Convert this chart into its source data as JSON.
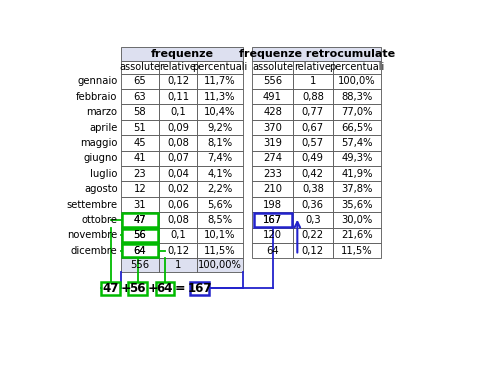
{
  "months": [
    "gennaio",
    "febbraio",
    "marzo",
    "aprile",
    "maggio",
    "giugno",
    "luglio",
    "agosto",
    "settembre",
    "ottobre",
    "novembre",
    "dicembre"
  ],
  "freq_abs": [
    "65",
    "63",
    "58",
    "51",
    "45",
    "41",
    "23",
    "12",
    "31",
    "47",
    "56",
    "64"
  ],
  "freq_rel": [
    "0,12",
    "0,11",
    "0,1",
    "0,09",
    "0,08",
    "0,07",
    "0,04",
    "0,02",
    "0,06",
    "0,08",
    "0,1",
    "0,12"
  ],
  "freq_pct": [
    "11,7%",
    "11,3%",
    "10,4%",
    "9,2%",
    "8,1%",
    "7,4%",
    "4,1%",
    "2,2%",
    "5,6%",
    "8,5%",
    "10,1%",
    "11,5%"
  ],
  "retro_abs": [
    "556",
    "491",
    "428",
    "370",
    "319",
    "274",
    "233",
    "210",
    "198",
    "167",
    "120",
    "64"
  ],
  "retro_rel": [
    "1",
    "0,88",
    "0,77",
    "0,67",
    "0,57",
    "0,49",
    "0,42",
    "0,38",
    "0,36",
    "0,3",
    "0,22",
    "0,12"
  ],
  "retro_pct": [
    "100,0%",
    "88,3%",
    "77,0%",
    "66,5%",
    "57,4%",
    "49,3%",
    "41,9%",
    "37,8%",
    "35,6%",
    "30,0%",
    "21,6%",
    "11,5%"
  ],
  "total_abs": "556",
  "total_rel": "1",
  "total_pct": "100,00%",
  "header_bg": "#dde0f0",
  "green_color": "#00bb00",
  "blue_color": "#2222cc"
}
